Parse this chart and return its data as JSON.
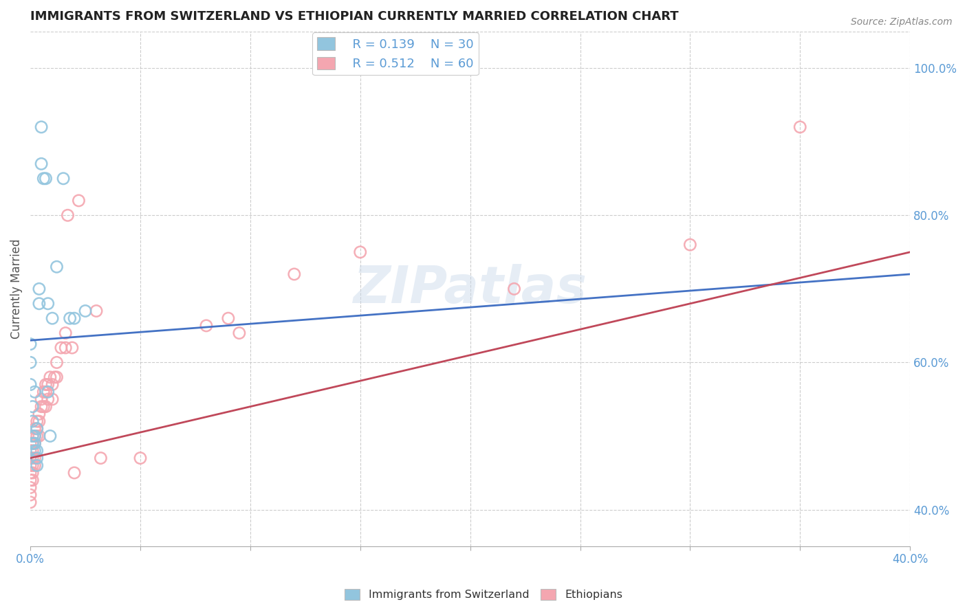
{
  "title": "IMMIGRANTS FROM SWITZERLAND VS ETHIOPIAN CURRENTLY MARRIED CORRELATION CHART",
  "source": "Source: ZipAtlas.com",
  "ylabel": "Currently Married",
  "legend_label1": "Immigrants from Switzerland",
  "legend_label2": "Ethiopians",
  "legend_r1": "R = 0.139",
  "legend_n1": "N = 30",
  "legend_r2": "R = 0.512",
  "legend_n2": "N = 60",
  "color_swiss": "#92C5DE",
  "color_eth": "#F4A6B0",
  "color_swiss_line": "#4472C4",
  "color_eth_line": "#C0485A",
  "watermark": "ZIPatlas",
  "swiss_x": [
    0.0,
    0.0,
    0.0,
    0.001,
    0.001,
    0.001,
    0.001,
    0.002,
    0.002,
    0.002,
    0.002,
    0.003,
    0.003,
    0.003,
    0.003,
    0.004,
    0.004,
    0.005,
    0.005,
    0.006,
    0.007,
    0.008,
    0.008,
    0.009,
    0.01,
    0.012,
    0.015,
    0.018,
    0.02,
    0.025
  ],
  "swiss_y": [
    0.625,
    0.6,
    0.57,
    0.54,
    0.52,
    0.5,
    0.49,
    0.56,
    0.5,
    0.49,
    0.48,
    0.48,
    0.51,
    0.47,
    0.46,
    0.7,
    0.68,
    0.92,
    0.87,
    0.85,
    0.85,
    0.56,
    0.68,
    0.5,
    0.66,
    0.73,
    0.85,
    0.66,
    0.66,
    0.67
  ],
  "eth_x": [
    0.0,
    0.0,
    0.0,
    0.0,
    0.0,
    0.0,
    0.0,
    0.0,
    0.0,
    0.001,
    0.001,
    0.001,
    0.001,
    0.001,
    0.001,
    0.001,
    0.002,
    0.002,
    0.002,
    0.002,
    0.002,
    0.003,
    0.003,
    0.003,
    0.004,
    0.004,
    0.004,
    0.005,
    0.005,
    0.006,
    0.006,
    0.007,
    0.007,
    0.007,
    0.008,
    0.008,
    0.009,
    0.01,
    0.01,
    0.011,
    0.012,
    0.012,
    0.014,
    0.016,
    0.016,
    0.017,
    0.019,
    0.02,
    0.022,
    0.03,
    0.032,
    0.05,
    0.08,
    0.09,
    0.095,
    0.12,
    0.15,
    0.22,
    0.3,
    0.35
  ],
  "eth_y": [
    0.48,
    0.47,
    0.46,
    0.45,
    0.44,
    0.43,
    0.42,
    0.41,
    0.49,
    0.5,
    0.49,
    0.48,
    0.47,
    0.46,
    0.45,
    0.44,
    0.51,
    0.5,
    0.49,
    0.47,
    0.46,
    0.52,
    0.51,
    0.5,
    0.53,
    0.52,
    0.5,
    0.55,
    0.54,
    0.56,
    0.54,
    0.57,
    0.56,
    0.54,
    0.57,
    0.55,
    0.58,
    0.57,
    0.55,
    0.58,
    0.6,
    0.58,
    0.62,
    0.64,
    0.62,
    0.8,
    0.62,
    0.45,
    0.82,
    0.67,
    0.47,
    0.47,
    0.65,
    0.66,
    0.64,
    0.72,
    0.75,
    0.7,
    0.76,
    0.92
  ],
  "xlim": [
    0.0,
    0.4
  ],
  "ylim": [
    0.35,
    1.05
  ],
  "ygrid_vals": [
    0.4,
    0.6,
    0.8,
    1.0
  ],
  "xgrid_n": 8,
  "swiss_line_x0": 0.0,
  "swiss_line_x1": 0.4,
  "swiss_line_y0": 0.63,
  "swiss_line_y1": 0.72,
  "eth_line_x0": 0.0,
  "eth_line_x1": 0.4,
  "eth_line_y0": 0.47,
  "eth_line_y1": 0.75,
  "bg_color": "#FFFFFF",
  "title_color": "#222222",
  "axis_color": "#5B9BD5",
  "source_color": "#888888"
}
